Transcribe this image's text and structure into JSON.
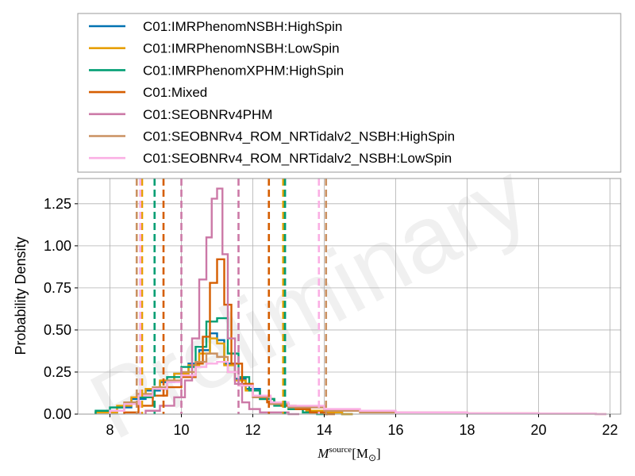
{
  "chart_data": {
    "type": "line",
    "title": "",
    "xlabel": "M^{source} [M_⊙]",
    "ylabel": "Probability Density",
    "xlim": [
      7.1,
      22.3
    ],
    "ylim": [
      0.0,
      1.4
    ],
    "xticks": [
      8,
      10,
      12,
      14,
      16,
      18,
      20,
      22
    ],
    "yticks": [
      0.0,
      0.25,
      0.5,
      0.75,
      1.0,
      1.25
    ],
    "ytick_labels": [
      "0.00",
      "0.25",
      "0.50",
      "0.75",
      "1.00",
      "1.25"
    ],
    "grid": true,
    "legend_position": "top (outside plot)",
    "watermark": "Preliminary",
    "series": [
      {
        "name": "C01:IMRPhenomNSBH:HighSpin",
        "color": "#0072b2",
        "x": [
          7.6,
          8.2,
          8.6,
          9.0,
          9.4,
          9.8,
          10.2,
          10.5,
          10.8,
          11.0,
          11.2,
          11.5,
          11.8,
          12.2,
          12.6,
          13.0,
          13.5,
          14.0,
          14.5
        ],
        "y": [
          0.01,
          0.04,
          0.09,
          0.14,
          0.19,
          0.24,
          0.3,
          0.38,
          0.48,
          0.44,
          0.3,
          0.21,
          0.15,
          0.09,
          0.06,
          0.03,
          0.02,
          0.01,
          0.0
        ],
        "interval": [
          8.85,
          12.9
        ]
      },
      {
        "name": "C01:IMRPhenomNSBH:LowSpin",
        "color": "#e69f00",
        "x": [
          7.6,
          8.2,
          8.6,
          9.0,
          9.4,
          9.8,
          10.2,
          10.5,
          10.8,
          11.0,
          11.2,
          11.5,
          11.8,
          12.2,
          12.6,
          13.0,
          13.5,
          14.0,
          14.5
        ],
        "y": [
          0.01,
          0.05,
          0.1,
          0.15,
          0.2,
          0.24,
          0.29,
          0.36,
          0.45,
          0.42,
          0.29,
          0.2,
          0.14,
          0.09,
          0.06,
          0.03,
          0.02,
          0.01,
          0.0
        ],
        "interval": [
          8.9,
          12.85
        ]
      },
      {
        "name": "C01:IMRPhenomXPHM:HighSpin",
        "color": "#009e73",
        "x": [
          7.6,
          8.0,
          8.4,
          8.8,
          9.2,
          9.6,
          10.0,
          10.4,
          10.7,
          11.0,
          11.3,
          11.6,
          11.9,
          12.2,
          12.6,
          13.0,
          13.4,
          13.8
        ],
        "y": [
          0.02,
          0.04,
          0.06,
          0.1,
          0.15,
          0.22,
          0.28,
          0.4,
          0.55,
          0.57,
          0.36,
          0.22,
          0.14,
          0.09,
          0.05,
          0.03,
          0.01,
          0.0
        ],
        "interval": [
          9.25,
          12.9
        ]
      },
      {
        "name": "C01:Mixed",
        "color": "#d55e00",
        "x": [
          8.4,
          8.8,
          9.2,
          9.6,
          10.0,
          10.4,
          10.6,
          10.8,
          11.0,
          11.2,
          11.4,
          11.7,
          12.0,
          12.4,
          12.8,
          13.2,
          13.6,
          14.0
        ],
        "y": [
          0.01,
          0.05,
          0.11,
          0.16,
          0.22,
          0.3,
          0.46,
          0.78,
          0.92,
          0.65,
          0.3,
          0.18,
          0.11,
          0.07,
          0.05,
          0.03,
          0.01,
          0.0
        ],
        "interval": [
          9.5,
          12.45
        ]
      },
      {
        "name": "C01:SEOBNRv4PHM",
        "color": "#cc79a7",
        "x": [
          9.0,
          9.4,
          9.8,
          10.1,
          10.3,
          10.5,
          10.7,
          10.85,
          11.0,
          11.15,
          11.3,
          11.5,
          11.7,
          11.9,
          12.2,
          12.6,
          13.0
        ],
        "y": [
          0.02,
          0.05,
          0.1,
          0.2,
          0.45,
          0.8,
          1.05,
          1.28,
          1.34,
          0.95,
          0.45,
          0.18,
          0.07,
          0.03,
          0.01,
          0.01,
          0.0
        ],
        "interval": [
          10.0,
          11.6
        ]
      },
      {
        "name": "C01:SEOBNRv4_ROM_NRTidalv2_NSBH:HighSpin",
        "color": "#ca9161",
        "x": [
          8.0,
          8.4,
          8.8,
          9.2,
          9.6,
          10.0,
          10.4,
          10.7,
          11.0,
          11.3,
          11.6,
          12.0,
          12.5,
          13.0,
          14.0,
          15.0,
          16.0,
          18.0,
          20.0,
          21.6
        ],
        "y": [
          0.02,
          0.07,
          0.12,
          0.16,
          0.2,
          0.25,
          0.31,
          0.36,
          0.34,
          0.25,
          0.17,
          0.1,
          0.06,
          0.04,
          0.02,
          0.01,
          0.01,
          0.005,
          0.003,
          0.0
        ],
        "interval": [
          8.75,
          14.05
        ]
      },
      {
        "name": "C01:SEOBNRv4_ROM_NRTidalv2_NSBH:LowSpin",
        "color": "#fbafe4",
        "x": [
          8.0,
          8.4,
          8.8,
          9.2,
          9.6,
          10.0,
          10.4,
          10.7,
          11.0,
          11.3,
          11.6,
          12.0,
          12.5,
          13.0,
          14.0,
          15.0,
          16.0,
          18.0,
          20.0,
          21.6
        ],
        "y": [
          0.02,
          0.06,
          0.11,
          0.15,
          0.19,
          0.23,
          0.28,
          0.3,
          0.31,
          0.25,
          0.17,
          0.11,
          0.07,
          0.05,
          0.03,
          0.02,
          0.01,
          0.005,
          0.003,
          0.0
        ],
        "interval": [
          8.85,
          13.85
        ]
      }
    ]
  }
}
